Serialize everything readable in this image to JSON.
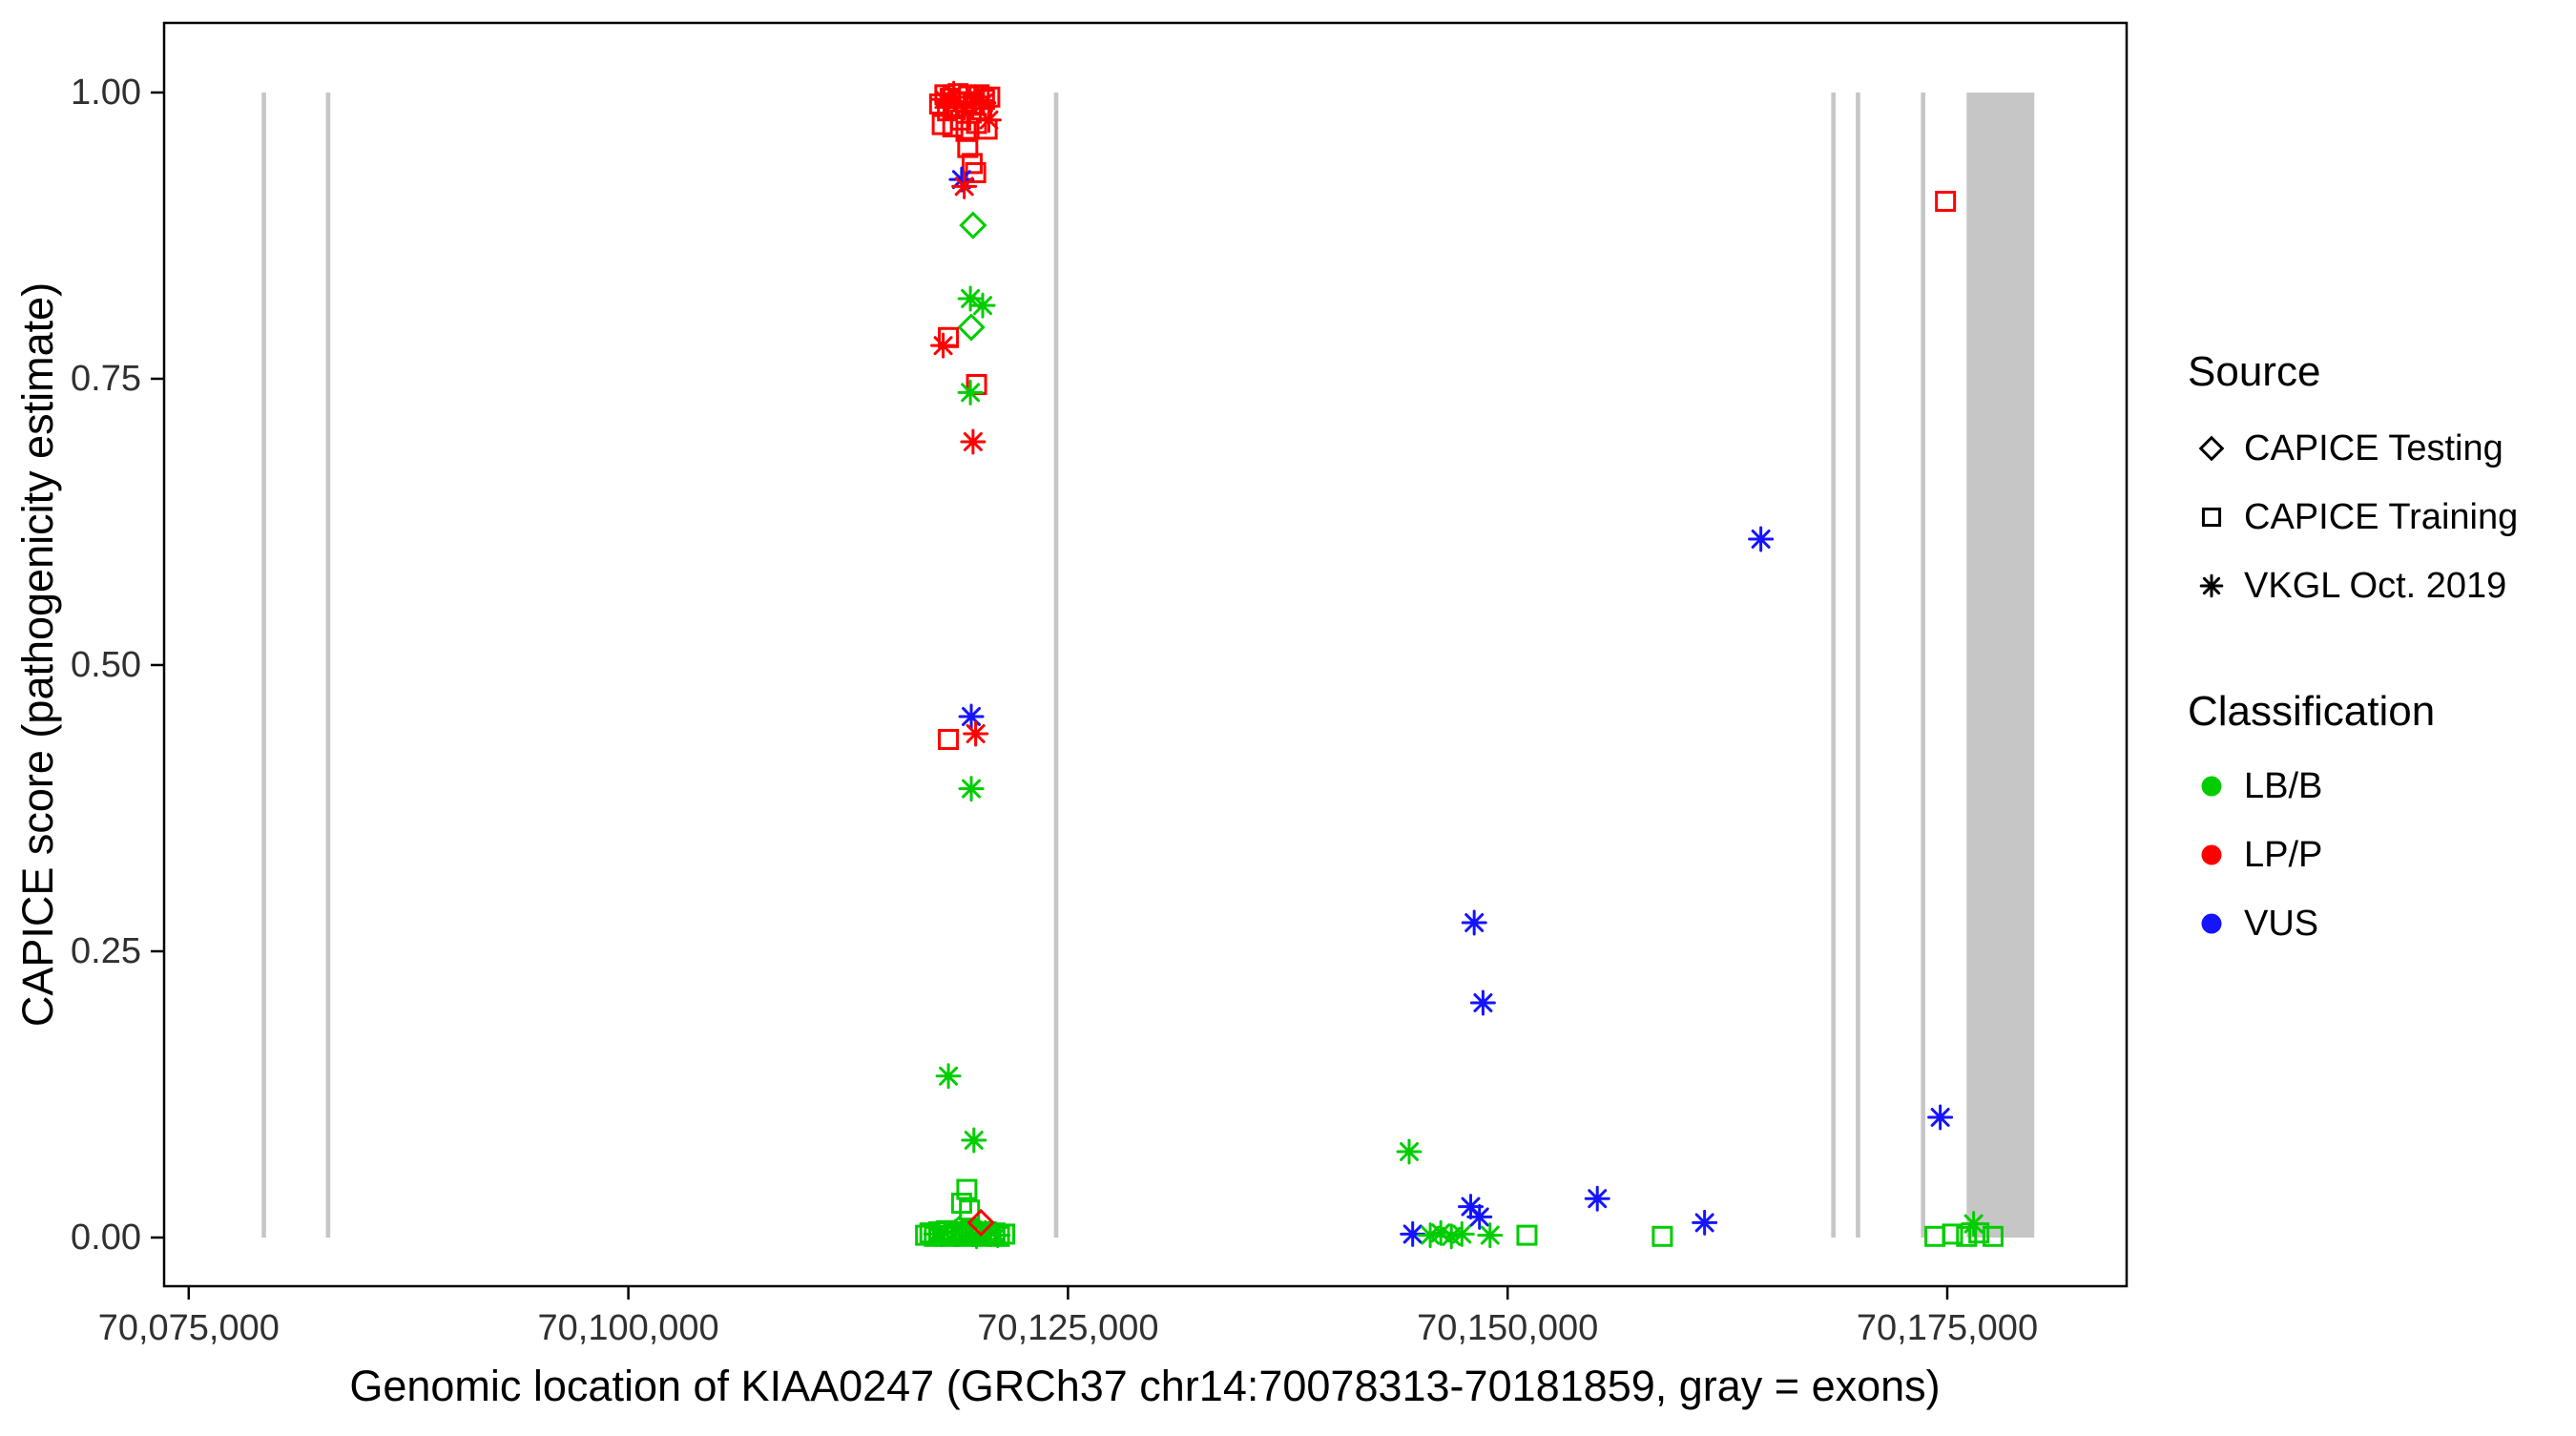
{
  "chart_data": {
    "type": "scatter",
    "title": "",
    "xlabel": "Genomic location of KIAA0247 (GRCh37 chr14:70078313-70181859, gray = exons)",
    "ylabel": "CAPICE score (pathogenicity estimate)",
    "xlim": [
      70073600,
      70185200
    ],
    "ylim": [
      -0.0425,
      1.0608
    ],
    "grid": false,
    "x_ticks": [
      {
        "value": 70075000,
        "label": "70,075,000"
      },
      {
        "value": 70100000,
        "label": "70,100,000"
      },
      {
        "value": 70125000,
        "label": "70,125,000"
      },
      {
        "value": 70150000,
        "label": "70,150,000"
      },
      {
        "value": 70175000,
        "label": "70,175,000"
      }
    ],
    "y_ticks": [
      {
        "value": 0.0,
        "label": "0.00"
      },
      {
        "value": 0.25,
        "label": "0.25"
      },
      {
        "value": 0.5,
        "label": "0.50"
      },
      {
        "value": 0.75,
        "label": "0.75"
      },
      {
        "value": 1.0,
        "label": "1.00"
      }
    ],
    "colors": {
      "LB/B": "#00CD00",
      "LP/P": "#FF0000",
      "VUS": "#1414FF",
      "exon": "#C6C6C6",
      "panel_border": "#000000"
    },
    "exon_y_range": [
      0,
      1
    ],
    "exons": [
      [
        70079150,
        70079400
      ],
      [
        70082800,
        70083050
      ],
      [
        70124200,
        70124450
      ],
      [
        70168400,
        70168650
      ],
      [
        70169800,
        70170050
      ],
      [
        70173500,
        70173750
      ],
      [
        70176100,
        70179950
      ]
    ],
    "point_encoding": {
      "fields": [
        "genomic_position",
        "capice_score",
        "source_shape",
        "classification"
      ],
      "shapes": {
        "d": "CAPICE Testing",
        "s": "CAPICE Training",
        "a": "VKGL Oct. 2019"
      },
      "classes": {
        "B": "LB/B",
        "P": "LP/P",
        "V": "VUS"
      }
    },
    "points": [
      [
        70117700,
        0.99,
        "s",
        "P"
      ],
      [
        70117850,
        0.972,
        "s",
        "P"
      ],
      [
        70118000,
        0.998,
        "s",
        "P"
      ],
      [
        70118150,
        0.984,
        "s",
        "P"
      ],
      [
        70118300,
        0.995,
        "s",
        "P"
      ],
      [
        70118450,
        0.97,
        "s",
        "P"
      ],
      [
        70118600,
        0.988,
        "s",
        "P"
      ],
      [
        70118750,
        0.999,
        "s",
        "P"
      ],
      [
        70118900,
        0.976,
        "s",
        "P"
      ],
      [
        70119050,
        0.992,
        "s",
        "P"
      ],
      [
        70119200,
        0.966,
        "s",
        "P"
      ],
      [
        70119350,
        0.997,
        "s",
        "P"
      ],
      [
        70119500,
        0.982,
        "s",
        "P"
      ],
      [
        70119650,
        0.99,
        "s",
        "P"
      ],
      [
        70119800,
        0.973,
        "s",
        "P"
      ],
      [
        70119950,
        0.998,
        "s",
        "P"
      ],
      [
        70120100,
        0.985,
        "s",
        "P"
      ],
      [
        70120250,
        0.994,
        "s",
        "P"
      ],
      [
        70120400,
        0.968,
        "s",
        "P"
      ],
      [
        70120550,
        0.996,
        "s",
        "P"
      ],
      [
        70117950,
        0.994,
        "a",
        "P"
      ],
      [
        70118500,
        0.999,
        "a",
        "P"
      ],
      [
        70119100,
        0.987,
        "a",
        "P"
      ],
      [
        70119700,
        0.996,
        "a",
        "P"
      ],
      [
        70120200,
        0.991,
        "a",
        "P"
      ],
      [
        70120500,
        0.976,
        "a",
        "P"
      ],
      [
        70119300,
        0.952,
        "s",
        "P"
      ],
      [
        70119550,
        0.938,
        "s",
        "P"
      ],
      [
        70119750,
        0.93,
        "s",
        "P"
      ],
      [
        70118950,
        0.924,
        "a",
        "V"
      ],
      [
        70119100,
        0.918,
        "a",
        "P"
      ],
      [
        70119600,
        0.884,
        "d",
        "B"
      ],
      [
        70119450,
        0.82,
        "a",
        "B"
      ],
      [
        70120150,
        0.814,
        "a",
        "B"
      ],
      [
        70119500,
        0.795,
        "d",
        "B"
      ],
      [
        70118200,
        0.786,
        "s",
        "P"
      ],
      [
        70117900,
        0.779,
        "a",
        "P"
      ],
      [
        70119800,
        0.745,
        "s",
        "P"
      ],
      [
        70119450,
        0.738,
        "a",
        "B"
      ],
      [
        70119600,
        0.695,
        "a",
        "P"
      ],
      [
        70119500,
        0.455,
        "a",
        "V"
      ],
      [
        70119750,
        0.44,
        "a",
        "P"
      ],
      [
        70118200,
        0.435,
        "s",
        "P"
      ],
      [
        70119500,
        0.392,
        "a",
        "B"
      ],
      [
        70118200,
        0.141,
        "a",
        "B"
      ],
      [
        70119650,
        0.085,
        "a",
        "B"
      ],
      [
        70119250,
        0.042,
        "s",
        "B"
      ],
      [
        70118950,
        0.03,
        "s",
        "B"
      ],
      [
        70119400,
        0.024,
        "s",
        "B"
      ],
      [
        70116900,
        0.002,
        "s",
        "B"
      ],
      [
        70117150,
        0.004,
        "s",
        "B"
      ],
      [
        70117400,
        0.001,
        "s",
        "B"
      ],
      [
        70117650,
        0.005,
        "s",
        "B"
      ],
      [
        70117900,
        0.002,
        "s",
        "B"
      ],
      [
        70118100,
        0.006,
        "s",
        "B"
      ],
      [
        70118300,
        0.001,
        "s",
        "B"
      ],
      [
        70118500,
        0.004,
        "s",
        "B"
      ],
      [
        70118700,
        0.002,
        "s",
        "B"
      ],
      [
        70118900,
        0.005,
        "s",
        "B"
      ],
      [
        70119100,
        0.001,
        "s",
        "B"
      ],
      [
        70119300,
        0.003,
        "s",
        "B"
      ],
      [
        70119500,
        0.006,
        "s",
        "B"
      ],
      [
        70119700,
        0.002,
        "s",
        "B"
      ],
      [
        70119900,
        0.004,
        "s",
        "B"
      ],
      [
        70120100,
        0.001,
        "s",
        "B"
      ],
      [
        70120350,
        0.005,
        "s",
        "B"
      ],
      [
        70120600,
        0.002,
        "s",
        "B"
      ],
      [
        70120850,
        0.004,
        "s",
        "B"
      ],
      [
        70121100,
        0.001,
        "s",
        "B"
      ],
      [
        70121400,
        0.003,
        "s",
        "B"
      ],
      [
        70117500,
        0.003,
        "a",
        "B"
      ],
      [
        70118600,
        0.005,
        "a",
        "B"
      ],
      [
        70119800,
        0.001,
        "a",
        "B"
      ],
      [
        70120300,
        0.004,
        "a",
        "B"
      ],
      [
        70121000,
        0.002,
        "a",
        "B"
      ],
      [
        70118800,
        0.007,
        "d",
        "B"
      ],
      [
        70120050,
        0.013,
        "d",
        "P"
      ],
      [
        70144400,
        0.075,
        "a",
        "B"
      ],
      [
        70148100,
        0.275,
        "a",
        "V"
      ],
      [
        70148600,
        0.205,
        "a",
        "V"
      ],
      [
        70144600,
        0.003,
        "a",
        "V"
      ],
      [
        70145600,
        0.002,
        "a",
        "B"
      ],
      [
        70146200,
        0.004,
        "a",
        "B"
      ],
      [
        70146800,
        0.001,
        "a",
        "B"
      ],
      [
        70147400,
        0.003,
        "a",
        "B"
      ],
      [
        70147900,
        0.027,
        "a",
        "V"
      ],
      [
        70148400,
        0.018,
        "a",
        "V"
      ],
      [
        70149000,
        0.002,
        "a",
        "B"
      ],
      [
        70151100,
        0.002,
        "s",
        "B"
      ],
      [
        70155100,
        0.034,
        "a",
        "V"
      ],
      [
        70158800,
        0.001,
        "s",
        "B"
      ],
      [
        70161200,
        0.013,
        "a",
        "V"
      ],
      [
        70164400,
        0.61,
        "a",
        "V"
      ],
      [
        70174900,
        0.905,
        "s",
        "P"
      ],
      [
        70174600,
        0.105,
        "a",
        "V"
      ],
      [
        70176500,
        0.012,
        "a",
        "B"
      ],
      [
        70174300,
        0.001,
        "s",
        "B"
      ],
      [
        70175300,
        0.003,
        "s",
        "B"
      ],
      [
        70176100,
        0.001,
        "s",
        "B"
      ],
      [
        70176800,
        0.004,
        "s",
        "B"
      ],
      [
        70177600,
        0.001,
        "s",
        "B"
      ]
    ],
    "legend": {
      "source": {
        "title": "Source",
        "items": [
          {
            "label": "CAPICE Testing",
            "shape": "d"
          },
          {
            "label": "CAPICE Training",
            "shape": "s"
          },
          {
            "label": "VKGL Oct. 2019",
            "shape": "a"
          }
        ]
      },
      "classification": {
        "title": "Classification",
        "items": [
          {
            "label": "LB/B",
            "class": "B"
          },
          {
            "label": "LP/P",
            "class": "P"
          },
          {
            "label": "VUS",
            "class": "V"
          }
        ]
      }
    }
  }
}
